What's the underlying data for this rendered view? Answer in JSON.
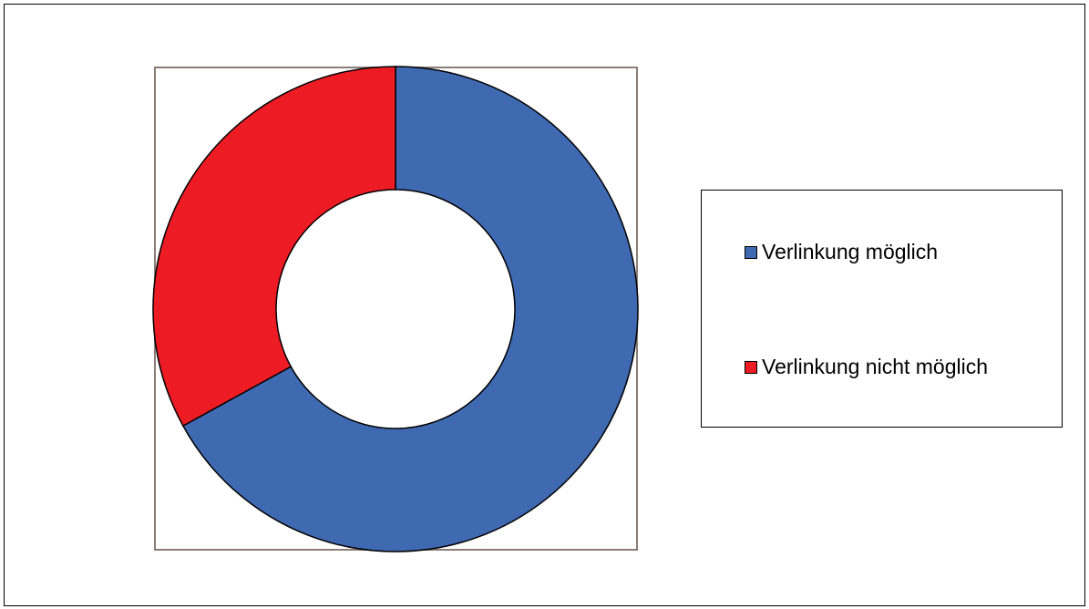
{
  "chart_data": {
    "type": "pie",
    "style": "donut",
    "title": "",
    "series": [
      {
        "labels": [
          "Verlinkung möglich",
          "Verlinkung nicht möglich"
        ],
        "values": [
          67,
          33
        ],
        "colors": [
          "#3f69b1",
          "#ed1c24"
        ]
      }
    ],
    "legend": {
      "position": "right",
      "items": [
        {
          "label": "Verlinkung möglich",
          "color": "#3f69b1"
        },
        {
          "label": "Verlinkung nicht möglich",
          "color": "#ed1c24"
        }
      ]
    }
  }
}
